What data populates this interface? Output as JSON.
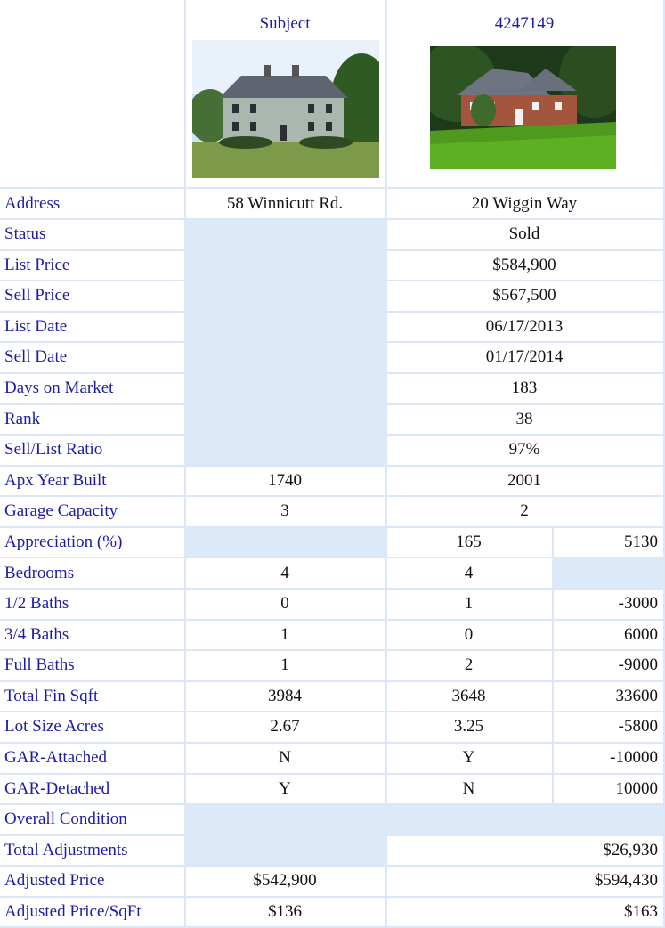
{
  "header": {
    "subject": "Subject",
    "comparable": "4247149"
  },
  "rows": [
    {
      "label": "Address",
      "subject": "58 Winnicutt Rd.",
      "comp": "20 Wiggin Way"
    },
    {
      "label": "Status",
      "comp": "Sold"
    },
    {
      "label": "List Price",
      "comp": "$584,900"
    },
    {
      "label": "Sell Price",
      "comp": "$567,500"
    },
    {
      "label": "List Date",
      "comp": "06/17/2013"
    },
    {
      "label": "Sell Date",
      "comp": "01/17/2014"
    },
    {
      "label": "Days on Market",
      "comp": "183"
    },
    {
      "label": "Rank",
      "comp": "38"
    },
    {
      "label": "Sell/List Ratio",
      "comp": "97%"
    },
    {
      "label": "Apx Year Built",
      "subject": "1740",
      "comp": "2001"
    },
    {
      "label": "Garage Capacity",
      "subject": "3",
      "comp": "2"
    },
    {
      "label": "Appreciation (%)",
      "comp_value": "165",
      "adjustment": "5130"
    },
    {
      "label": "Bedrooms",
      "subject": "4",
      "comp_value": "4"
    },
    {
      "label": "1/2 Baths",
      "subject": "0",
      "comp_value": "1",
      "adjustment": "-3000"
    },
    {
      "label": "3/4 Baths",
      "subject": "1",
      "comp_value": "0",
      "adjustment": "6000"
    },
    {
      "label": "Full Baths",
      "subject": "1",
      "comp_value": "2",
      "adjustment": "-9000"
    },
    {
      "label": "Total Fin Sqft",
      "subject": "3984",
      "comp_value": "3648",
      "adjustment": "33600"
    },
    {
      "label": "Lot Size Acres",
      "subject": "2.67",
      "comp_value": "3.25",
      "adjustment": "-5800"
    },
    {
      "label": "GAR-Attached",
      "subject": "N",
      "comp_value": "Y",
      "adjustment": "-10000"
    },
    {
      "label": "GAR-Detached",
      "subject": "Y",
      "comp_value": "N",
      "adjustment": "10000"
    },
    {
      "label": "Overall Condition",
      "comp_value": null,
      "adjustment": null
    },
    {
      "label": "Total Adjustments",
      "comp_total": "$26,930"
    },
    {
      "label": "Adjusted Price",
      "subject": "$542,900",
      "comp_total": "$594,430"
    },
    {
      "label": "Adjusted Price/SqFt",
      "subject": "$136",
      "comp_total": "$163"
    }
  ]
}
